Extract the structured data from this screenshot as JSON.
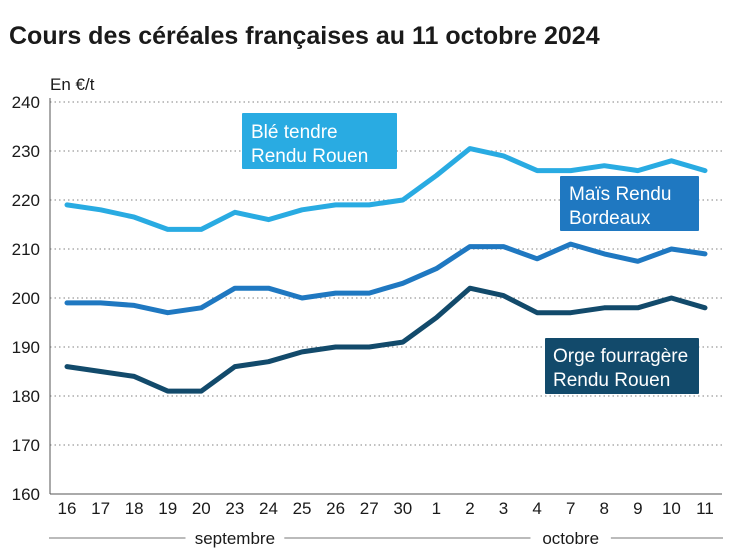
{
  "title": "Cours des céréales françaises au 11 octobre 2024",
  "ylabel": "En €/t",
  "colors": {
    "ble": "#29abe2",
    "mais": "#1f78c1",
    "orge": "#124a6b",
    "grid": "#9a9a9a",
    "text": "#1a1a1a"
  },
  "chart_data": {
    "type": "line",
    "title": "Cours des céréales françaises au 11 octobre 2024",
    "ylabel": "En €/t",
    "xlabel": "",
    "ylim": [
      160,
      240
    ],
    "yticks": [
      160,
      170,
      180,
      190,
      200,
      210,
      220,
      230,
      240
    ],
    "grid": "horizontal dotted",
    "categories": [
      "16",
      "17",
      "18",
      "19",
      "20",
      "23",
      "24",
      "25",
      "26",
      "27",
      "30",
      "1",
      "2",
      "3",
      "4",
      "7",
      "8",
      "9",
      "10",
      "11"
    ],
    "month_groups": [
      {
        "label": "septembre",
        "start": 0,
        "end": 10
      },
      {
        "label": "octobre",
        "start": 11,
        "end": 19
      }
    ],
    "series": [
      {
        "name": "Blé tendre Rendu Rouen",
        "label_lines": [
          "Blé tendre",
          "Rendu Rouen"
        ],
        "color": "#29abe2",
        "values": [
          219,
          218,
          216.5,
          214,
          214,
          217.5,
          216,
          218,
          219,
          219,
          220,
          225,
          230.5,
          229,
          226,
          226,
          227,
          226,
          228,
          226
        ]
      },
      {
        "name": "Maïs Rendu Bordeaux",
        "label_lines": [
          "Maïs Rendu",
          "Bordeaux"
        ],
        "color": "#1f78c1",
        "values": [
          199,
          199,
          198.5,
          197,
          198,
          202,
          202,
          200,
          201,
          201,
          203,
          206,
          210.5,
          210.5,
          208,
          211,
          209,
          207.5,
          210,
          209
        ]
      },
      {
        "name": "Orge fourragère Rendu Rouen",
        "label_lines": [
          "Orge fourragère",
          "Rendu Rouen"
        ],
        "color": "#124a6b",
        "values": [
          186,
          185,
          184,
          181,
          181,
          186,
          187,
          189,
          190,
          190,
          191,
          196,
          202,
          200.5,
          197,
          197,
          198,
          198,
          200,
          198
        ]
      }
    ]
  }
}
